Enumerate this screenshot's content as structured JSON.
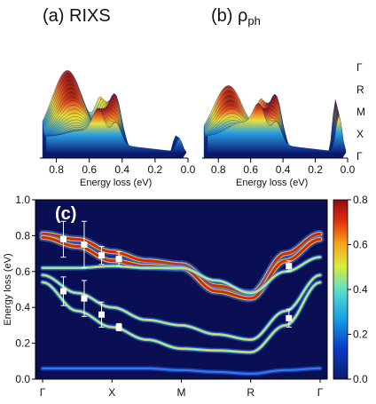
{
  "chart_data": [
    {
      "type": "waterfall-3d",
      "panel_label": "(a) RIXS",
      "xlabel": "Energy loss (eV)",
      "xticks": [
        "0.8",
        "0.6",
        "0.4",
        "0.2",
        "0.0"
      ],
      "xlim": [
        0.9,
        0.0
      ],
      "path_labels": [
        "Γ",
        "R",
        "M",
        "X",
        "Γ"
      ]
    },
    {
      "type": "waterfall-3d",
      "panel_label_main": "(b) ρ",
      "panel_label_sub": "ph",
      "xlabel": "Energy loss (eV)",
      "xticks": [
        "0.8",
        "0.6",
        "0.4",
        "0.2",
        "0.0"
      ],
      "xlim": [
        0.9,
        0.0
      ]
    },
    {
      "type": "heatmap",
      "panel_label": "(c)",
      "ylabel": "Energy loss (eV)",
      "ylim": [
        0.0,
        1.0
      ],
      "yticks": [
        "0.0",
        "0.2",
        "0.4",
        "0.6",
        "0.8",
        "1.0"
      ],
      "x_path": [
        "Γ",
        "X",
        "M",
        "R",
        "Γ"
      ],
      "x_path_pos": [
        0,
        1,
        2,
        3,
        4
      ],
      "colorbar": {
        "min": 0.0,
        "max": 0.8,
        "ticks": [
          "0.0",
          "0.2",
          "0.4",
          "0.6",
          "0.8"
        ]
      },
      "bands": [
        {
          "k": [
            0,
            0.5,
            1.0,
            1.5,
            2.0,
            2.5,
            3.0,
            3.5,
            4.0
          ],
          "e": [
            0.81,
            0.78,
            0.71,
            0.66,
            0.64,
            0.52,
            0.48,
            0.7,
            0.81
          ],
          "weight": "strong"
        },
        {
          "k": [
            0,
            0.5,
            1.0,
            1.5,
            2.0,
            2.5,
            3.0,
            3.5,
            4.0
          ],
          "e": [
            0.79,
            0.74,
            0.66,
            0.63,
            0.62,
            0.49,
            0.45,
            0.66,
            0.78
          ],
          "weight": "strong"
        },
        {
          "k": [
            0,
            0.5,
            1.0,
            1.5,
            2.0,
            2.5,
            3.0,
            3.5,
            4.0
          ],
          "e": [
            0.62,
            0.62,
            0.63,
            0.62,
            0.62,
            0.55,
            0.48,
            0.6,
            0.68
          ],
          "weight": "medium"
        },
        {
          "k": [
            0,
            0.5,
            1.0,
            1.5,
            2.0,
            2.5,
            3.0,
            3.5,
            4.0
          ],
          "e": [
            0.58,
            0.48,
            0.4,
            0.33,
            0.3,
            0.25,
            0.22,
            0.38,
            0.58
          ],
          "weight": "medium"
        },
        {
          "k": [
            0,
            0.5,
            1.0,
            1.5,
            2.0,
            2.5,
            3.0,
            3.5,
            4.0
          ],
          "e": [
            0.54,
            0.38,
            0.29,
            0.22,
            0.17,
            0.16,
            0.15,
            0.3,
            0.54
          ],
          "weight": "medium"
        },
        {
          "k": [
            0,
            0.5,
            1.0,
            1.5,
            2.0,
            2.5,
            3.0,
            3.5,
            4.0
          ],
          "e": [
            0.06,
            0.06,
            0.06,
            0.06,
            0.05,
            0.04,
            0.03,
            0.05,
            0.06
          ],
          "weight": "weak"
        }
      ],
      "points": [
        {
          "k": 0.3,
          "e": 0.78,
          "err": 0.1
        },
        {
          "k": 0.6,
          "e": 0.75,
          "err": 0.13
        },
        {
          "k": 0.85,
          "e": 0.69,
          "err": 0.05
        },
        {
          "k": 1.1,
          "e": 0.67,
          "err": 0.04
        },
        {
          "k": 0.3,
          "e": 0.49,
          "err": 0.08
        },
        {
          "k": 0.6,
          "e": 0.45,
          "err": 0.1
        },
        {
          "k": 0.85,
          "e": 0.36,
          "err": 0.07
        },
        {
          "k": 1.1,
          "e": 0.29,
          "err": 0.02
        },
        {
          "k": 3.55,
          "e": 0.63,
          "err": 0.03
        },
        {
          "k": 3.55,
          "e": 0.34,
          "err": 0.05
        }
      ]
    }
  ]
}
